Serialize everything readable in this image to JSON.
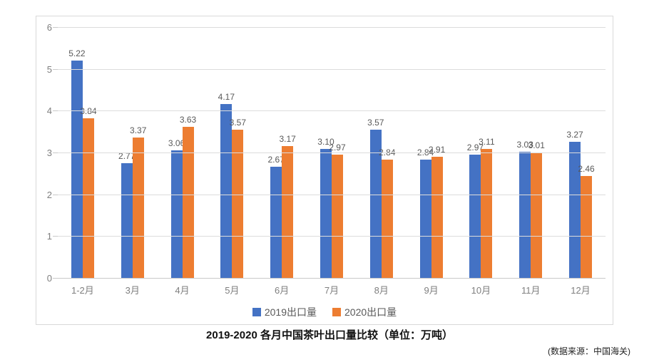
{
  "page": {
    "title": "2019-2020 各月中国茶叶出口量比较（单位：万吨）",
    "source": "(数据来源：中国海关)"
  },
  "chart_data": {
    "type": "bar",
    "title": "2019-2020 各月中国茶叶出口量比较（单位：万吨）",
    "source": "(数据来源：中国海关)",
    "categories": [
      "1-2月",
      "3月",
      "4月",
      "5月",
      "6月",
      "7月",
      "8月",
      "9月",
      "10月",
      "11月",
      "12月"
    ],
    "series": [
      {
        "name": "2019出口量",
        "color": "#4472C4",
        "values": [
          5.22,
          2.77,
          3.06,
          4.17,
          2.67,
          3.1,
          3.57,
          2.84,
          2.97,
          3.03,
          3.27
        ]
      },
      {
        "name": "2020出口量",
        "color": "#ED7D31",
        "values": [
          3.84,
          3.37,
          3.63,
          3.57,
          3.17,
          2.97,
          2.84,
          2.91,
          3.11,
          3.01,
          2.46
        ]
      }
    ],
    "ylim": [
      0,
      6
    ],
    "yticks": [
      0,
      1,
      2,
      3,
      4,
      5,
      6
    ],
    "grid": true,
    "data_labels": true,
    "legend_position": "bottom",
    "xlabel": "",
    "ylabel": ""
  },
  "colors": {
    "series_2019": "#4472C4",
    "series_2020": "#ED7D31",
    "gridline": "#DCDCDC",
    "axis_text": "#7F7F7F",
    "data_label_text": "#595959",
    "card_border": "#D9D9D9"
  }
}
